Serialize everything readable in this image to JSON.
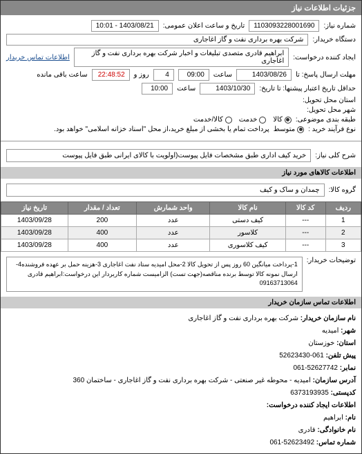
{
  "header": "جزئیات اطلاعات نیاز",
  "reqNum": {
    "label": "شماره نیاز:",
    "value": "1103093228001690"
  },
  "pubDate": {
    "label": "تاریخ و ساعت اعلان عمومی:",
    "value": "1403/08/21 - 10:01"
  },
  "buyer": {
    "label": "دستگاه خریدار:",
    "value": "شرکت بهره برداری نفت و گاز اغاجاری"
  },
  "requester": {
    "label": "ایجاد کننده درخواست:",
    "value": "ابراهیم قادری متصدی تبلیغات و اخبار شرکت بهره برداری نفت و گاز اغاجاری"
  },
  "contactLink": "اطلاعات تماس خریدار",
  "deadline": {
    "label": "مهلت ارسال پاسخ: تا",
    "date": "1403/08/26",
    "timeLabel": "ساعت",
    "time": "09:00",
    "daysLabel": "روز و",
    "days": "4",
    "remainLabel": "ساعت باقی مانده",
    "remain": "22:48:52"
  },
  "validity": {
    "label": "حداقل تاریخ اعتبار پیشنها: تا تاریخ:",
    "date": "1403/10/30",
    "timeLabel": "ساعت",
    "time": "10:00"
  },
  "province": {
    "label": "استان محل تحویل:"
  },
  "city": {
    "label": "شهر محل تحویل:"
  },
  "classify": {
    "label": "طبقه بندی موضوعی:",
    "options": [
      "کالا",
      "خدمت",
      "کالا/خدمت"
    ],
    "checked": 0
  },
  "payment": {
    "label": "نوع فرآیند خرید :",
    "options": [
      "متوسط"
    ],
    "note": "پرداخت تمام یا بخشی از مبلغ خرید،از محل \"اسناد خزانه اسلامی\" خواهد بود."
  },
  "need": {
    "label": "شرح کلی نیاز:",
    "value": "خرید کیف اداری طبق مشخصات فایل پیوست(اولویت با کالای ایرانی طبق فایل پیوست"
  },
  "goodsHeader": "اطلاعات کالاهای مورد نیاز",
  "group": {
    "label": "گروه کالا:",
    "value": "چمدان و ساک و کیف"
  },
  "table": {
    "columns": [
      "ردیف",
      "کد کالا",
      "نام کالا",
      "واحد شمارش",
      "تعداد / مقدار",
      "تاریخ نیاز"
    ],
    "rows": [
      [
        "1",
        "---",
        "کیف دستی",
        "عدد",
        "200",
        "1403/09/28"
      ],
      [
        "2",
        "---",
        "کلاسور",
        "عدد",
        "400",
        "1403/09/28"
      ],
      [
        "3",
        "---",
        "کیف کلاسوری",
        "عدد",
        "400",
        "1403/09/28"
      ]
    ]
  },
  "buyerNote": {
    "label": "توضیحات خریدار:",
    "value": "1-پرداخت میانگین 60 روز پس از تحویل کالا 2-محل امیدیه ستاد نفت اغاجاری 3-هزینه حمل بر عهده فروشنده4-ارسال نمونه کالا توسط برنده مناقصه(جهت تست) الزامیست شماره کاربردار این درخواست:ابراهیم قادری 09163713064"
  },
  "contactHeader": "اطلاعات تماس سازمان خریدار",
  "contact": {
    "orgLabel": "نام سازمان خریدار:",
    "org": "شرکت بهره برداری نفت و گاز اغاجاری",
    "cityLabel": "شهر:",
    "city": "امیدیه",
    "provLabel": "استان:",
    "prov": "خوزستان",
    "phoneLabel": "پیش تلفن:",
    "phone": "061-52623430",
    "faxLabel": "نمابر:",
    "fax": "52627742-061",
    "addrLabel": "آدرس سازمان:",
    "addr": "امیدیه - محوطه غیر صنعتی - شرکت بهره برداری نفت و گاز اغاجاری - ساختمان 360",
    "postLabel": "کدپستی:",
    "post": "6373193935",
    "creatorHeader": "اطلاعات ایجاد کننده درخواست:",
    "nameLabel": "نام:",
    "name": "ابراهیم",
    "familyLabel": "نام خانوادگی:",
    "family": "قادری",
    "telLabel": "شماره تماس:",
    "tel": "52623492-061"
  }
}
